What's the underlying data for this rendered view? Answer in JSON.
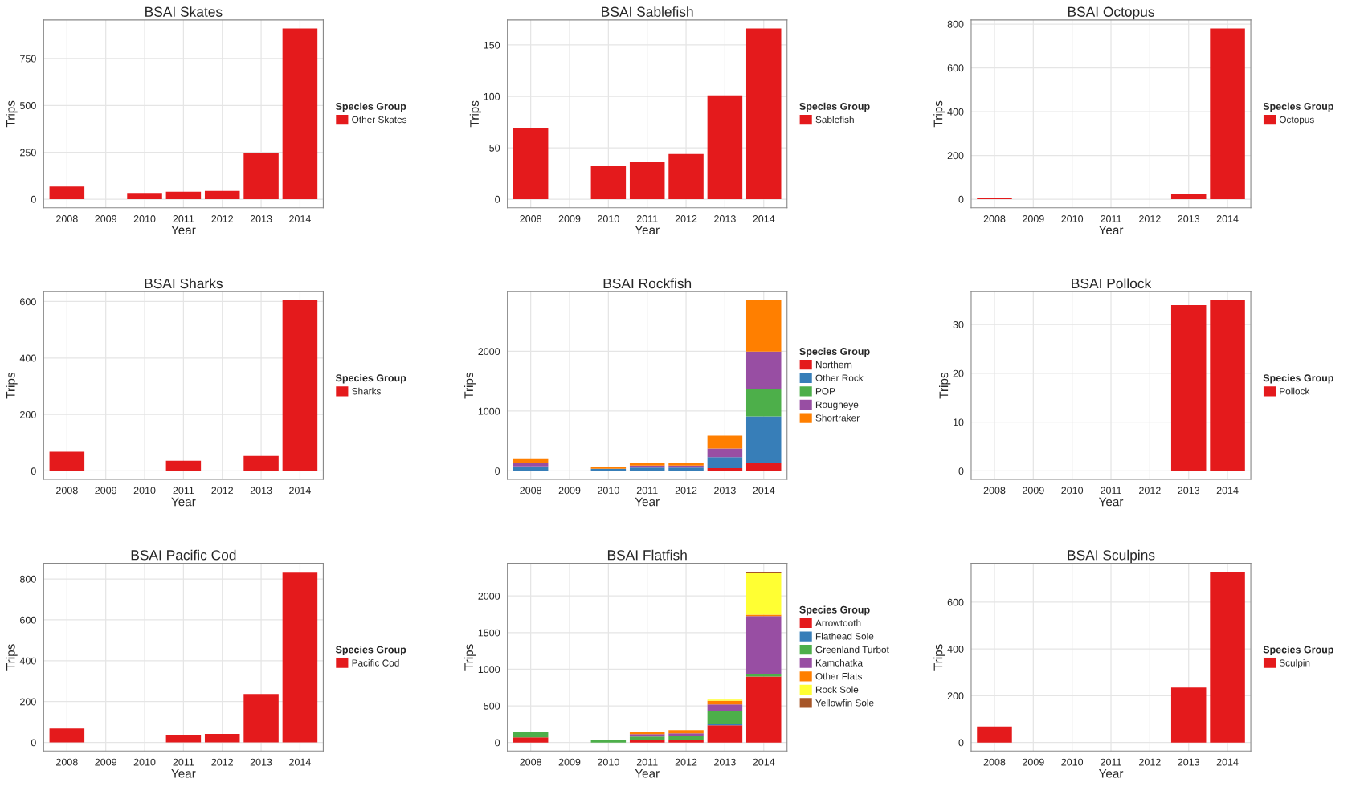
{
  "chart_data": [
    {
      "type": "bar",
      "title": "BSAI Skates",
      "xlabel": "Year",
      "ylabel": "Trips",
      "legend_title": "Species Group",
      "legend": "right",
      "grid": true,
      "categories": [
        "2008",
        "2009",
        "2010",
        "2011",
        "2012",
        "2013",
        "2014"
      ],
      "ylim": [
        -45.5,
        955.5
      ],
      "yticks": [
        0,
        250,
        500,
        750
      ],
      "series": [
        {
          "name": "Other Skates",
          "color": "#e41a1c",
          "values": [
            68,
            null,
            33,
            40,
            44,
            245,
            910
          ]
        }
      ]
    },
    {
      "type": "bar",
      "title": "BSAI Sablefish",
      "xlabel": "Year",
      "ylabel": "Trips",
      "legend_title": "Species Group",
      "legend": "right",
      "grid": true,
      "categories": [
        "2008",
        "2009",
        "2010",
        "2011",
        "2012",
        "2013",
        "2014"
      ],
      "ylim": [
        -8.3,
        174.3
      ],
      "yticks": [
        0,
        50,
        100,
        150
      ],
      "series": [
        {
          "name": "Sablefish",
          "color": "#e41a1c",
          "values": [
            69,
            null,
            32,
            36,
            44,
            101,
            166
          ]
        }
      ]
    },
    {
      "type": "bar",
      "title": "BSAI Octopus",
      "xlabel": "Year",
      "ylabel": "Trips",
      "legend_title": "Species Group",
      "legend": "right",
      "grid": true,
      "categories": [
        "2008",
        "2009",
        "2010",
        "2011",
        "2012",
        "2013",
        "2014"
      ],
      "ylim": [
        -39,
        819
      ],
      "yticks": [
        0,
        200,
        400,
        600,
        800
      ],
      "series": [
        {
          "name": "Octopus",
          "color": "#e41a1c",
          "values": [
            4,
            null,
            null,
            null,
            null,
            22,
            780
          ]
        }
      ]
    },
    {
      "type": "bar",
      "title": "BSAI Sharks",
      "xlabel": "Year",
      "ylabel": "Trips",
      "legend_title": "Species Group",
      "legend": "right",
      "grid": true,
      "categories": [
        "2008",
        "2009",
        "2010",
        "2011",
        "2012",
        "2013",
        "2014"
      ],
      "ylim": [
        -30,
        635
      ],
      "yticks": [
        0,
        200,
        400,
        600
      ],
      "series": [
        {
          "name": "Sharks",
          "color": "#e41a1c",
          "values": [
            68,
            null,
            null,
            36,
            null,
            53,
            605
          ]
        }
      ]
    },
    {
      "type": "bar",
      "stacked": true,
      "title": "BSAI Rockfish",
      "xlabel": "Year",
      "ylabel": "Trips",
      "legend_title": "Species Group",
      "legend": "right",
      "grid": true,
      "categories": [
        "2008",
        "2009",
        "2010",
        "2011",
        "2012",
        "2013",
        "2014"
      ],
      "ylim": [
        -143,
        2998
      ],
      "yticks": [
        0,
        1000,
        2000
      ],
      "series": [
        {
          "name": "Northern",
          "color": "#e41a1c",
          "values": [
            null,
            null,
            null,
            null,
            null,
            45,
            135
          ]
        },
        {
          "name": "Other Rock",
          "color": "#377eb8",
          "values": [
            75,
            null,
            35,
            55,
            55,
            185,
            775
          ]
        },
        {
          "name": "POP",
          "color": "#4daf4a",
          "values": [
            null,
            null,
            null,
            null,
            null,
            null,
            450
          ]
        },
        {
          "name": "Rougheye",
          "color": "#984ea3",
          "values": [
            65,
            null,
            null,
            35,
            35,
            145,
            635
          ]
        },
        {
          "name": "Shortraker",
          "color": "#ff7f00",
          "values": [
            70,
            null,
            35,
            35,
            35,
            215,
            860
          ]
        }
      ]
    },
    {
      "type": "bar",
      "title": "BSAI Pollock",
      "xlabel": "Year",
      "ylabel": "Trips",
      "legend_title": "Species Group",
      "legend": "right",
      "grid": true,
      "categories": [
        "2008",
        "2009",
        "2010",
        "2011",
        "2012",
        "2013",
        "2014"
      ],
      "ylim": [
        -1.75,
        36.75
      ],
      "yticks": [
        0,
        10,
        20,
        30
      ],
      "series": [
        {
          "name": "Pollock",
          "color": "#e41a1c",
          "values": [
            null,
            null,
            null,
            null,
            null,
            34,
            35
          ]
        }
      ]
    },
    {
      "type": "bar",
      "title": "BSAI Pacific Cod",
      "xlabel": "Year",
      "ylabel": "Trips",
      "legend_title": "Species Group",
      "legend": "right",
      "grid": true,
      "categories": [
        "2008",
        "2009",
        "2010",
        "2011",
        "2012",
        "2013",
        "2014"
      ],
      "ylim": [
        -42,
        877
      ],
      "yticks": [
        0,
        200,
        400,
        600,
        800
      ],
      "series": [
        {
          "name": "Pacific Cod",
          "color": "#e41a1c",
          "values": [
            68,
            null,
            null,
            38,
            42,
            237,
            835
          ]
        }
      ]
    },
    {
      "type": "bar",
      "stacked": true,
      "title": "BSAI Flatfish",
      "xlabel": "Year",
      "ylabel": "Trips",
      "legend_title": "Species Group",
      "legend": "right",
      "grid": true,
      "categories": [
        "2008",
        "2009",
        "2010",
        "2011",
        "2012",
        "2013",
        "2014"
      ],
      "ylim": [
        -116.5,
        2446.5
      ],
      "yticks": [
        0,
        500,
        1000,
        1500,
        2000
      ],
      "series": [
        {
          "name": "Arrowtooth",
          "color": "#e41a1c",
          "values": [
            70,
            null,
            null,
            40,
            40,
            235,
            900
          ]
        },
        {
          "name": "Flathead Sole",
          "color": "#377eb8",
          "values": [
            null,
            null,
            null,
            null,
            null,
            15,
            null
          ]
        },
        {
          "name": "Greenland Turbot",
          "color": "#4daf4a",
          "values": [
            70,
            null,
            30,
            40,
            45,
            185,
            40
          ]
        },
        {
          "name": "Kamchatka",
          "color": "#984ea3",
          "values": [
            null,
            null,
            null,
            35,
            40,
            85,
            785
          ]
        },
        {
          "name": "Other Flats",
          "color": "#ff7f00",
          "values": [
            null,
            null,
            null,
            25,
            45,
            50,
            20
          ]
        },
        {
          "name": "Rock Sole",
          "color": "#ffff33",
          "values": [
            null,
            null,
            null,
            null,
            null,
            15,
            575
          ]
        },
        {
          "name": "Yellowfin Sole",
          "color": "#a65628",
          "values": [
            null,
            null,
            null,
            null,
            null,
            null,
            10
          ]
        }
      ]
    },
    {
      "type": "bar",
      "title": "BSAI Sculpins",
      "xlabel": "Year",
      "ylabel": "Trips",
      "legend_title": "Species Group",
      "legend": "right",
      "grid": true,
      "categories": [
        "2008",
        "2009",
        "2010",
        "2011",
        "2012",
        "2013",
        "2014"
      ],
      "ylim": [
        -36.5,
        766.5
      ],
      "yticks": [
        0,
        200,
        400,
        600
      ],
      "series": [
        {
          "name": "Sculpin",
          "color": "#e41a1c",
          "values": [
            68,
            null,
            null,
            null,
            null,
            235,
            730
          ]
        }
      ]
    }
  ]
}
